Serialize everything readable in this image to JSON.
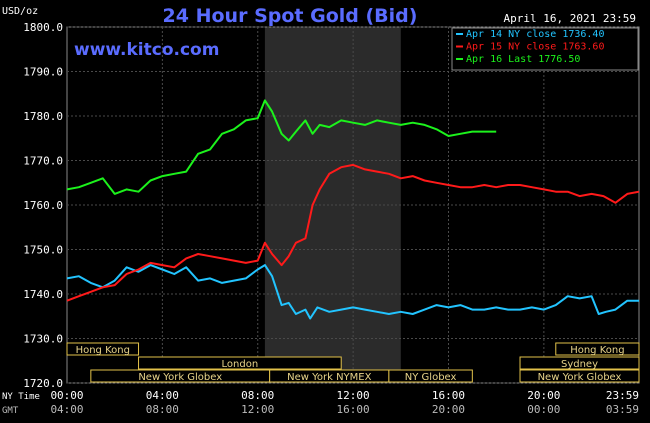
{
  "chart_data": {
    "type": "line",
    "title": "24 Hour Spot Gold (Bid)",
    "date_label": "April 16, 2021 23:59",
    "watermark": "www.kitco.com",
    "ylabel": "USD/oz",
    "ylim": [
      1720,
      1800
    ],
    "y_ticks": [
      "1800.0",
      "1790.0",
      "1780.0",
      "1770.0",
      "1760.0",
      "1750.0",
      "1740.0",
      "1730.0",
      "1720.0"
    ],
    "x_ticks": [
      "00:00",
      "04:00",
      "08:00",
      "12:00",
      "16:00",
      "20:00",
      "23:59"
    ],
    "gmt_ticks": [
      "04:00",
      "08:00",
      "12:00",
      "16:00",
      "20:00",
      "00:00",
      "03:59"
    ],
    "x_row_labels": {
      "ny": "NY Time",
      "gmt": "GMT"
    },
    "grid": true,
    "legend_position": "top-right",
    "shaded_session_hours": [
      8.3,
      14.0
    ],
    "sessions": [
      {
        "name": "Hong Kong",
        "start": 0.0,
        "end": 3.0,
        "row": 0
      },
      {
        "name": "Hong Kong",
        "start": 20.5,
        "end": 23.99,
        "row": 0
      },
      {
        "name": "London",
        "start": 3.0,
        "end": 11.5,
        "row": 1
      },
      {
        "name": "Sydney",
        "start": 19.0,
        "end": 23.99,
        "row": 1
      },
      {
        "name": "New York Globex",
        "start": 1.0,
        "end": 8.5,
        "row": 2
      },
      {
        "name": "New York NYMEX",
        "start": 8.5,
        "end": 13.5,
        "row": 2
      },
      {
        "name": "NY Globex",
        "start": 13.5,
        "end": 17.0,
        "row": 2
      },
      {
        "name": "New York Globex",
        "start": 19.0,
        "end": 23.99,
        "row": 2
      }
    ],
    "series": [
      {
        "name": "Apr 14 NY close 1736.40",
        "color": "#22c4ff",
        "x": [
          0,
          0.5,
          1,
          1.5,
          2,
          2.5,
          3,
          3.5,
          4,
          4.5,
          5,
          5.5,
          6,
          6.5,
          7,
          7.5,
          8,
          8.3,
          8.6,
          9,
          9.3,
          9.6,
          10,
          10.2,
          10.5,
          11,
          11.5,
          12,
          12.5,
          13,
          13.5,
          14,
          14.5,
          15,
          15.5,
          16,
          16.5,
          17,
          17.5,
          18,
          18.5,
          19,
          19.5,
          20,
          20.5,
          21,
          21.5,
          22,
          22.3,
          22.6,
          23,
          23.5,
          23.99
        ],
        "y": [
          1743.5,
          1744.0,
          1742.5,
          1741.5,
          1743.0,
          1746.0,
          1745.0,
          1746.5,
          1745.5,
          1744.5,
          1746.0,
          1743.0,
          1743.5,
          1742.5,
          1743.0,
          1743.5,
          1745.5,
          1746.5,
          1744.0,
          1737.5,
          1738.0,
          1735.5,
          1736.5,
          1734.5,
          1737.0,
          1736.0,
          1736.5,
          1737.0,
          1736.5,
          1736.0,
          1735.5,
          1736.0,
          1735.5,
          1736.5,
          1737.5,
          1737.0,
          1737.5,
          1736.5,
          1736.5,
          1737.0,
          1736.5,
          1736.5,
          1737.0,
          1736.5,
          1737.5,
          1739.5,
          1739.0,
          1739.5,
          1735.5,
          1736.0,
          1736.5,
          1738.5,
          1738.5
        ]
      },
      {
        "name": "Apr 15 NY close 1763.60",
        "color": "#ff1a1a",
        "x": [
          0,
          0.5,
          1,
          1.5,
          2,
          2.5,
          3,
          3.5,
          4,
          4.5,
          5,
          5.5,
          6,
          6.5,
          7,
          7.5,
          8,
          8.3,
          8.6,
          9,
          9.3,
          9.6,
          10,
          10.3,
          10.6,
          11,
          11.5,
          12,
          12.5,
          13,
          13.5,
          14,
          14.5,
          15,
          15.5,
          16,
          16.5,
          17,
          17.5,
          18,
          18.5,
          19,
          19.5,
          20,
          20.5,
          21,
          21.5,
          22,
          22.5,
          23,
          23.5,
          23.99
        ],
        "y": [
          1738.5,
          1739.5,
          1740.5,
          1741.5,
          1742.0,
          1744.5,
          1745.5,
          1747.0,
          1746.5,
          1746.0,
          1748.0,
          1749.0,
          1748.5,
          1748.0,
          1747.5,
          1747.0,
          1747.5,
          1751.5,
          1749.0,
          1746.5,
          1748.5,
          1751.5,
          1752.5,
          1760.0,
          1763.5,
          1767.0,
          1768.5,
          1769.0,
          1768.0,
          1767.5,
          1767.0,
          1766.0,
          1766.5,
          1765.5,
          1765.0,
          1764.5,
          1764.0,
          1764.0,
          1764.5,
          1764.0,
          1764.5,
          1764.5,
          1764.0,
          1763.5,
          1763.0,
          1763.0,
          1762.0,
          1762.5,
          1762.0,
          1760.5,
          1762.5,
          1763.0
        ]
      },
      {
        "name": "Apr 16 Last 1776.50",
        "color": "#1cf21c",
        "x": [
          0,
          0.5,
          1,
          1.5,
          2,
          2.5,
          3,
          3.5,
          4,
          4.5,
          5,
          5.5,
          6,
          6.5,
          7,
          7.5,
          8,
          8.3,
          8.6,
          9,
          9.3,
          9.6,
          10,
          10.3,
          10.6,
          11,
          11.5,
          12,
          12.5,
          13,
          13.5,
          14,
          14.5,
          15,
          15.5,
          16,
          16.5,
          17,
          17.5,
          18.0
        ],
        "y": [
          1763.5,
          1764.0,
          1765.0,
          1766.0,
          1762.5,
          1763.5,
          1763.0,
          1765.5,
          1766.5,
          1767.0,
          1767.5,
          1771.5,
          1772.5,
          1776.0,
          1777.0,
          1779.0,
          1779.5,
          1783.5,
          1781.0,
          1776.0,
          1774.5,
          1776.5,
          1779.0,
          1776.0,
          1778.0,
          1777.5,
          1779.0,
          1778.5,
          1778.0,
          1779.0,
          1778.5,
          1778.0,
          1778.5,
          1778.0,
          1777.0,
          1775.5,
          1776.0,
          1776.5,
          1776.5,
          1776.5
        ]
      }
    ]
  }
}
